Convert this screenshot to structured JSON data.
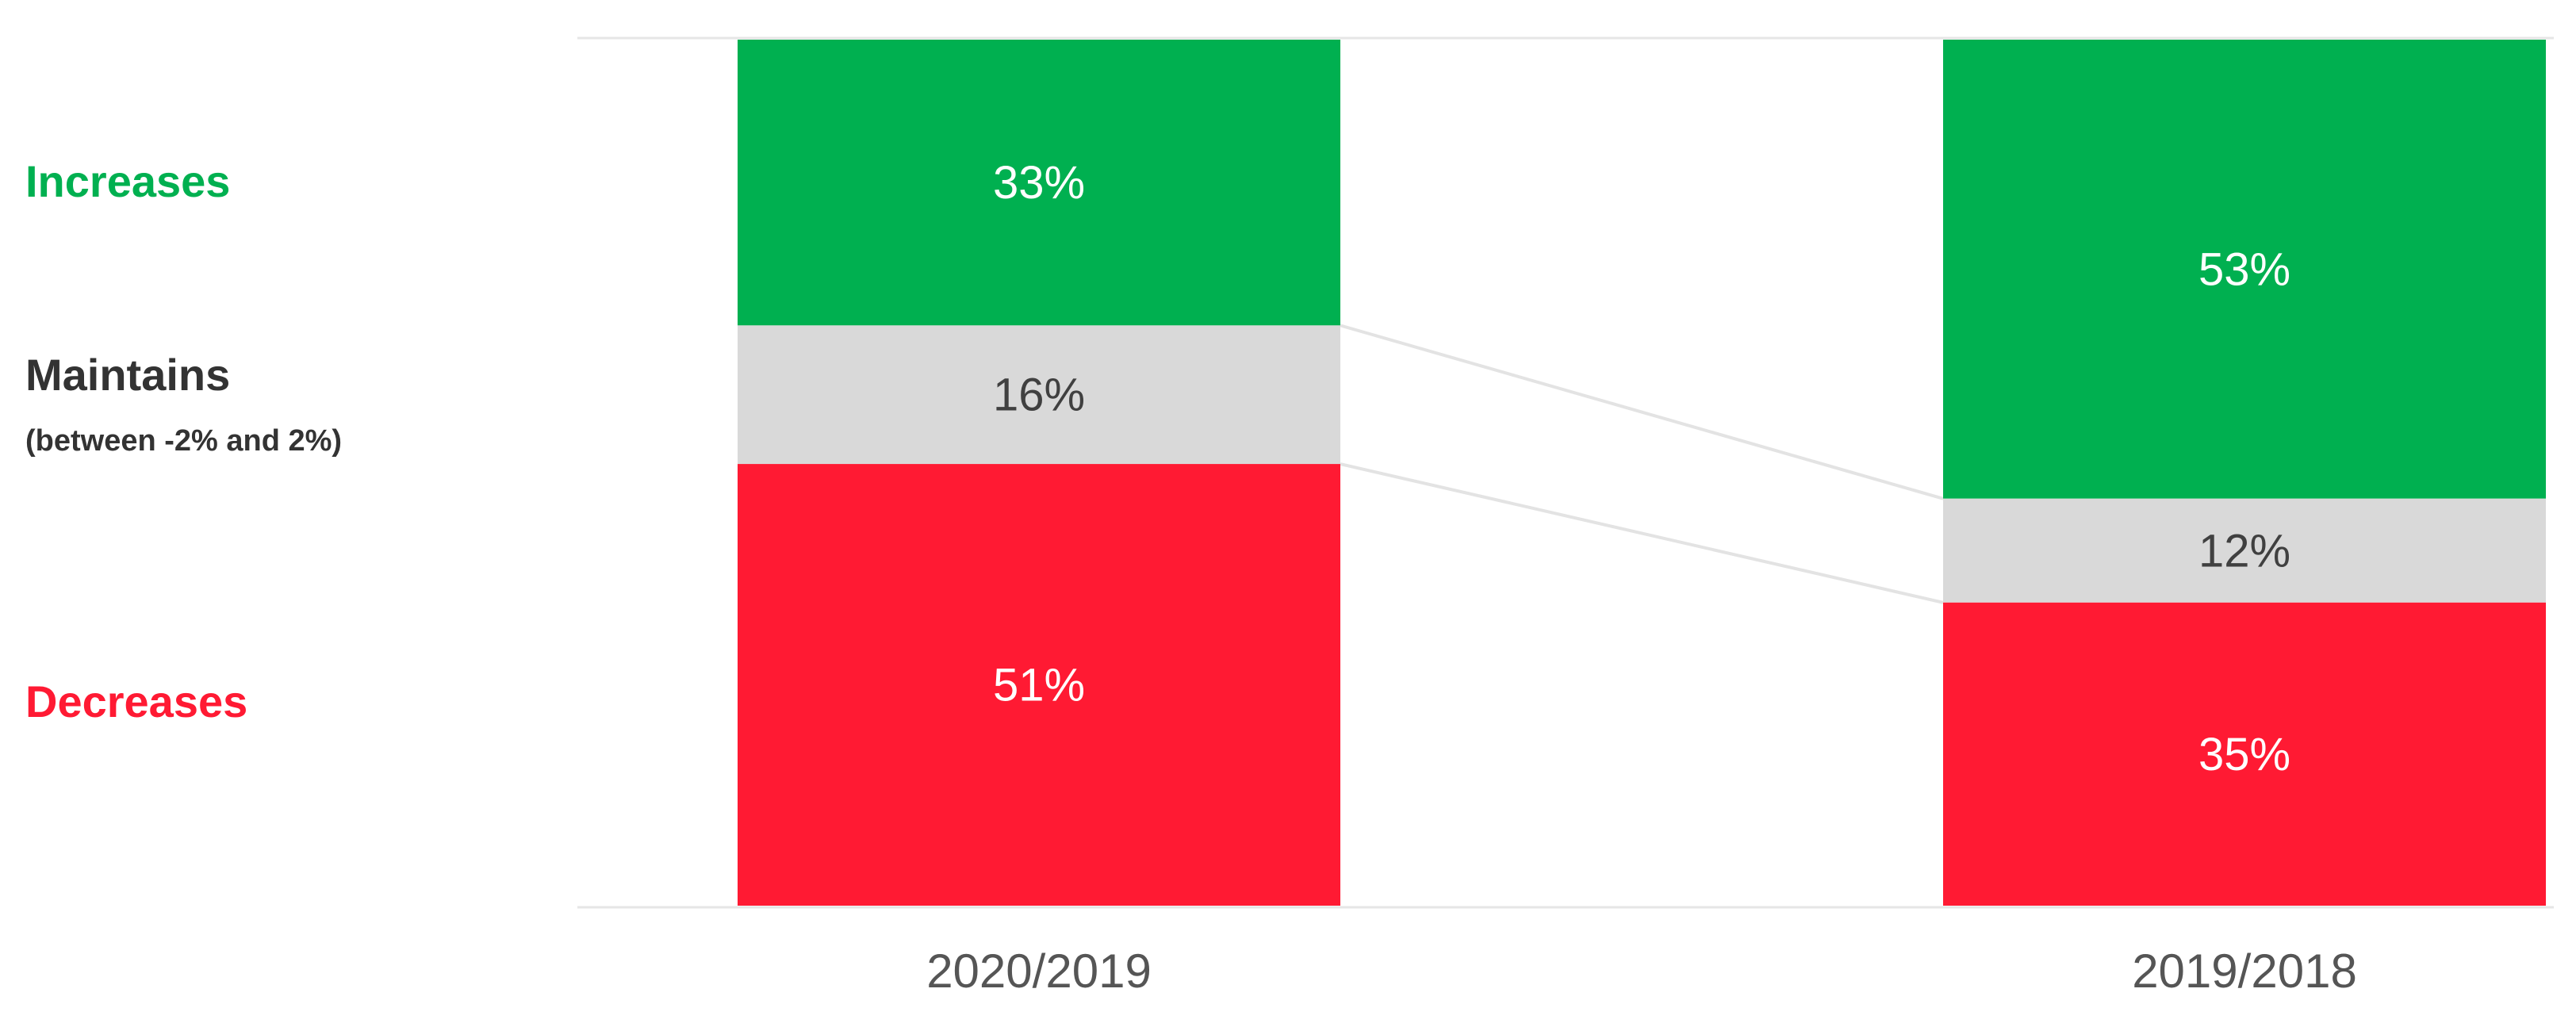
{
  "chart_data": {
    "type": "bar",
    "stacked": true,
    "orientation": "vertical",
    "categories": [
      "2020/2019",
      "2019/2018"
    ],
    "series": [
      {
        "name": "Increases",
        "values": [
          33,
          53
        ],
        "labels": [
          "33%",
          "53%"
        ],
        "color": "#00B050"
      },
      {
        "name": "Maintains",
        "note": "(between -2% and 2%)",
        "values": [
          16,
          12
        ],
        "labels": [
          "16%",
          "12%"
        ],
        "color": "#D9D9D9"
      },
      {
        "name": "Decreases",
        "values": [
          51,
          35
        ],
        "labels": [
          "51%",
          "35%"
        ],
        "color": "#FF1A33"
      }
    ],
    "legend_placement": "left",
    "ylim": [
      0,
      100
    ],
    "grid": false,
    "connector_lines": true,
    "label_colors": {
      "on_color": "#FFFFFF",
      "on_gray": "#404040"
    },
    "legend_colors": {
      "Increases": "#00B050",
      "Maintains": "#333333",
      "Decreases": "#FF1A33"
    }
  }
}
